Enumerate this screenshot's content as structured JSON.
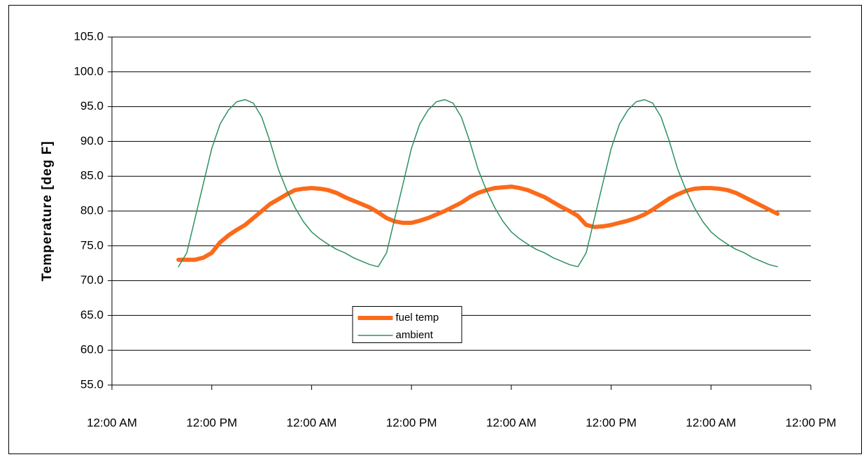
{
  "chart_data": {
    "type": "line",
    "y_label": "Temperature [deg F]",
    "x": [
      8,
      9,
      10,
      11,
      12,
      13,
      14,
      15,
      16,
      17,
      18,
      19,
      20,
      21,
      22,
      23,
      24,
      25,
      26,
      27,
      28,
      29,
      30,
      31,
      32,
      33,
      34,
      35,
      36,
      37,
      38,
      39,
      40,
      41,
      42,
      43,
      44,
      45,
      46,
      47,
      48,
      49,
      50,
      51,
      52,
      53,
      54,
      55,
      56,
      57,
      58,
      59,
      60,
      61,
      62,
      63,
      64,
      65,
      66,
      67,
      68,
      69,
      70,
      71,
      72,
      73,
      74,
      75,
      76,
      77,
      78,
      79,
      80
    ],
    "series": [
      {
        "name": "fuel temp",
        "color": "#fb6a1a",
        "width": 6,
        "values": [
          73,
          73,
          73,
          73.3,
          74,
          75.5,
          76.5,
          77.3,
          78,
          79,
          80,
          81,
          81.7,
          82.4,
          83,
          83.2,
          83.3,
          83.2,
          83,
          82.6,
          82,
          81.5,
          81,
          80.5,
          79.8,
          79,
          78.5,
          78.3,
          78.3,
          78.6,
          79,
          79.5,
          80,
          80.6,
          81.2,
          82,
          82.6,
          83,
          83.3,
          83.4,
          83.5,
          83.3,
          83,
          82.5,
          82,
          81.3,
          80.6,
          80,
          79.3,
          78,
          77.7,
          77.8,
          78,
          78.3,
          78.6,
          79,
          79.5,
          80.2,
          81,
          81.8,
          82.4,
          82.9,
          83.2,
          83.3,
          83.3,
          83.2,
          83,
          82.6,
          82,
          81.4,
          80.8,
          80.2,
          79.6
        ]
      },
      {
        "name": "ambient",
        "color": "#2e9060",
        "width": 1.5,
        "values": [
          72,
          74,
          79,
          84,
          89,
          92.5,
          94.5,
          95.7,
          96,
          95.5,
          93.5,
          90,
          86,
          83,
          80.5,
          78.5,
          77,
          76,
          75.2,
          74.5,
          74,
          73.3,
          72.8,
          72.3,
          72,
          74,
          79,
          84,
          89,
          92.5,
          94.5,
          95.7,
          96,
          95.5,
          93.5,
          90,
          86,
          83,
          80.5,
          78.5,
          77,
          76,
          75.2,
          74.5,
          74,
          73.3,
          72.8,
          72.3,
          72,
          74,
          79,
          84,
          89,
          92.5,
          94.5,
          95.7,
          96,
          95.5,
          93.5,
          90,
          86,
          83,
          80.5,
          78.5,
          77,
          76,
          75.2,
          74.5,
          74,
          73.3,
          72.8,
          72.3,
          72
        ]
      }
    ],
    "xlim": [
      0,
      84
    ],
    "xticks": [
      {
        "value": 0,
        "label": "12:00 AM"
      },
      {
        "value": 12,
        "label": "12:00 PM"
      },
      {
        "value": 24,
        "label": "12:00 AM"
      },
      {
        "value": 36,
        "label": "12:00 PM"
      },
      {
        "value": 48,
        "label": "12:00 AM"
      },
      {
        "value": 60,
        "label": "12:00 PM"
      },
      {
        "value": 72,
        "label": "12:00 AM"
      },
      {
        "value": 84,
        "label": "12:00 PM"
      }
    ],
    "ylim": [
      55,
      105
    ],
    "yticks": [
      {
        "value": 55,
        "label": "55.0"
      },
      {
        "value": 60,
        "label": "60.0"
      },
      {
        "value": 65,
        "label": "65.0"
      },
      {
        "value": 70,
        "label": "70.0"
      },
      {
        "value": 75,
        "label": "75.0"
      },
      {
        "value": 80,
        "label": "80.0"
      },
      {
        "value": 85,
        "label": "85.0"
      },
      {
        "value": 90,
        "label": "90.0"
      },
      {
        "value": 95,
        "label": "95.0"
      },
      {
        "value": 100,
        "label": "100.0"
      },
      {
        "value": 105,
        "label": "105.0"
      }
    ],
    "grid": true,
    "legend": "lower center"
  }
}
